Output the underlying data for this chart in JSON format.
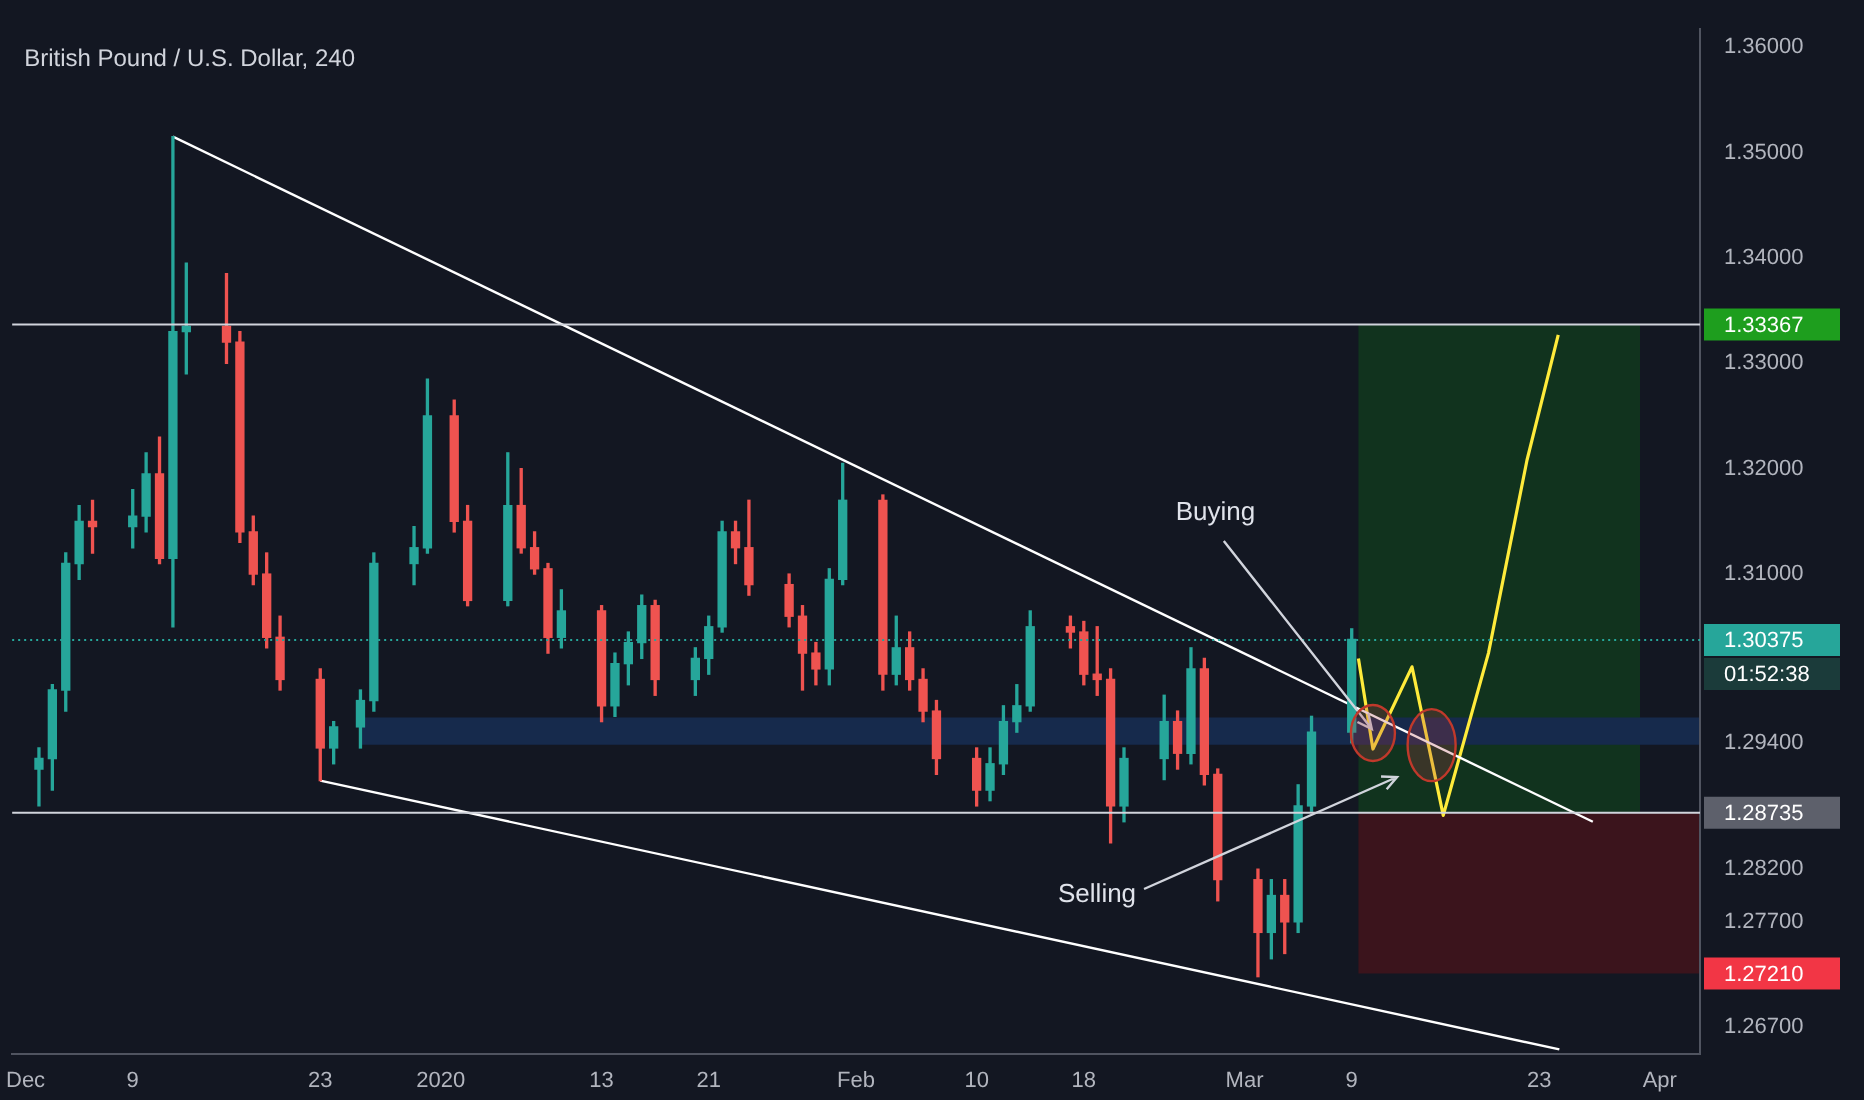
{
  "chart_data": {
    "type": "candlestick",
    "title": "British Pound / U.S. Dollar, 240",
    "x": [
      "2019-12-02",
      "2019-12-03",
      "2019-12-04",
      "2019-12-05",
      "2019-12-06",
      "2019-12-09",
      "2019-12-10",
      "2019-12-11",
      "2019-12-12",
      "2019-12-13",
      "2019-12-16",
      "2019-12-17",
      "2019-12-18",
      "2019-12-19",
      "2019-12-20",
      "2019-12-23",
      "2019-12-24",
      "2019-12-26",
      "2019-12-27",
      "2019-12-30",
      "2019-12-31",
      "2020-01-02",
      "2020-01-03",
      "2020-01-06",
      "2020-01-07",
      "2020-01-08",
      "2020-01-09",
      "2020-01-10",
      "2020-01-13",
      "2020-01-14",
      "2020-01-15",
      "2020-01-16",
      "2020-01-17",
      "2020-01-20",
      "2020-01-21",
      "2020-01-22",
      "2020-01-23",
      "2020-01-24",
      "2020-01-27",
      "2020-01-28",
      "2020-01-29",
      "2020-01-30",
      "2020-01-31",
      "2020-02-03",
      "2020-02-04",
      "2020-02-05",
      "2020-02-06",
      "2020-02-07",
      "2020-02-10",
      "2020-02-11",
      "2020-02-12",
      "2020-02-13",
      "2020-02-14",
      "2020-02-17",
      "2020-02-18",
      "2020-02-19",
      "2020-02-20",
      "2020-02-21",
      "2020-02-24",
      "2020-02-25",
      "2020-02-26",
      "2020-02-27",
      "2020-02-28",
      "2020-03-02",
      "2020-03-03",
      "2020-03-04",
      "2020-03-05",
      "2020-03-06",
      "2020-03-09"
    ],
    "ohlc": [
      [
        1.2915,
        1.2935,
        1.288,
        1.2925
      ],
      [
        1.2925,
        1.2995,
        1.2895,
        1.299
      ],
      [
        1.299,
        1.312,
        1.297,
        1.311
      ],
      [
        1.311,
        1.3165,
        1.3095,
        1.315
      ],
      [
        1.315,
        1.317,
        1.312,
        1.3145
      ],
      [
        1.3145,
        1.318,
        1.3125,
        1.3155
      ],
      [
        1.3155,
        1.3215,
        1.314,
        1.3195
      ],
      [
        1.3195,
        1.323,
        1.311,
        1.3115
      ],
      [
        1.3115,
        1.3515,
        1.305,
        1.333
      ],
      [
        1.333,
        1.3395,
        1.329,
        1.3335
      ],
      [
        1.3335,
        1.3385,
        1.33,
        1.332
      ],
      [
        1.332,
        1.333,
        1.313,
        1.314
      ],
      [
        1.314,
        1.3155,
        1.309,
        1.31
      ],
      [
        1.31,
        1.312,
        1.303,
        1.304
      ],
      [
        1.304,
        1.306,
        1.299,
        1.3
      ],
      [
        1.3,
        1.301,
        1.2904,
        1.2935
      ],
      [
        1.2935,
        1.296,
        1.292,
        1.2955
      ],
      [
        1.2955,
        1.299,
        1.2935,
        1.298
      ],
      [
        1.298,
        1.312,
        1.297,
        1.311
      ],
      [
        1.311,
        1.3145,
        1.309,
        1.3125
      ],
      [
        1.3125,
        1.3285,
        1.312,
        1.325
      ],
      [
        1.325,
        1.3265,
        1.314,
        1.315
      ],
      [
        1.315,
        1.3165,
        1.307,
        1.3075
      ],
      [
        1.3075,
        1.3215,
        1.307,
        1.3165
      ],
      [
        1.3165,
        1.32,
        1.312,
        1.3125
      ],
      [
        1.3125,
        1.314,
        1.31,
        1.3105
      ],
      [
        1.3105,
        1.311,
        1.3025,
        1.304
      ],
      [
        1.304,
        1.3085,
        1.303,
        1.3065
      ],
      [
        1.3065,
        1.307,
        1.296,
        1.2975
      ],
      [
        1.2975,
        1.3025,
        1.2965,
        1.3015
      ],
      [
        1.3015,
        1.3045,
        1.2995,
        1.3035
      ],
      [
        1.3035,
        1.308,
        1.302,
        1.307
      ],
      [
        1.307,
        1.3075,
        1.2985,
        1.3
      ],
      [
        1.3,
        1.303,
        1.2985,
        1.302
      ],
      [
        1.302,
        1.306,
        1.3005,
        1.305
      ],
      [
        1.305,
        1.315,
        1.3045,
        1.314
      ],
      [
        1.314,
        1.315,
        1.311,
        1.3125
      ],
      [
        1.3125,
        1.317,
        1.308,
        1.309
      ],
      [
        1.309,
        1.31,
        1.305,
        1.306
      ],
      [
        1.306,
        1.307,
        1.299,
        1.3025
      ],
      [
        1.3025,
        1.3035,
        1.2995,
        1.301
      ],
      [
        1.301,
        1.3105,
        1.2995,
        1.3095
      ],
      [
        1.3095,
        1.3205,
        1.309,
        1.317
      ],
      [
        1.317,
        1.3175,
        1.299,
        1.3005
      ],
      [
        1.3005,
        1.306,
        1.2995,
        1.303
      ],
      [
        1.303,
        1.3045,
        1.299,
        1.3
      ],
      [
        1.3,
        1.301,
        1.296,
        1.297
      ],
      [
        1.297,
        1.298,
        1.291,
        1.2925
      ],
      [
        1.2925,
        1.2935,
        1.288,
        1.2895
      ],
      [
        1.2895,
        1.2935,
        1.2885,
        1.292
      ],
      [
        1.292,
        1.2975,
        1.291,
        1.296
      ],
      [
        1.296,
        1.2995,
        1.295,
        1.2975
      ],
      [
        1.2975,
        1.3065,
        1.297,
        1.305
      ],
      [
        1.305,
        1.306,
        1.303,
        1.3045
      ],
      [
        1.3045,
        1.3055,
        1.2995,
        1.3005
      ],
      [
        1.3005,
        1.305,
        1.2985,
        1.3
      ],
      [
        1.3,
        1.301,
        1.2845,
        1.288
      ],
      [
        1.288,
        1.2935,
        1.2865,
        1.2925
      ],
      [
        1.2925,
        1.2985,
        1.2905,
        1.296
      ],
      [
        1.296,
        1.297,
        1.2915,
        1.293
      ],
      [
        1.293,
        1.303,
        1.292,
        1.301
      ],
      [
        1.301,
        1.302,
        1.29,
        1.291
      ],
      [
        1.291,
        1.2915,
        1.279,
        1.281
      ],
      [
        1.281,
        1.282,
        1.2718,
        1.276
      ],
      [
        1.276,
        1.281,
        1.2735,
        1.2795
      ],
      [
        1.2795,
        1.281,
        1.274,
        1.277
      ],
      [
        1.277,
        1.29,
        1.276,
        1.288
      ],
      [
        1.288,
        1.2965,
        1.2875,
        1.295
      ],
      [
        1.295,
        1.3048,
        1.294,
        1.3038
      ]
    ],
    "series": [
      {
        "type": "line",
        "color": "#ffffff",
        "x": [
          "2019-12-12",
          "2020-03-27"
        ],
        "values": [
          1.3515,
          1.2865
        ]
      },
      {
        "type": "line",
        "color": "#ffffff",
        "x": [
          "2019-12-23",
          "2020-03-24T12:00"
        ],
        "values": [
          1.2904,
          1.2649
        ]
      },
      {
        "type": "line",
        "color": "#ffeb3b",
        "x": [
          "2020-03-09T12:00",
          "2020-03-10T14:00",
          "2020-03-13T12:00",
          "2020-03-15T20:00",
          "2020-03-19T05:00",
          "2020-03-22T02:00",
          "2020-03-24T10:00"
        ],
        "values": [
          1.302,
          1.2934,
          1.3012,
          1.2871,
          1.3025,
          1.3208,
          1.3327
        ]
      }
    ],
    "xlim": [
      "2019-11-30",
      "2020-04-04"
    ],
    "xticks": [
      {
        "value": "2019-12-01",
        "label": "Dec"
      },
      {
        "value": "2019-12-09",
        "label": "9"
      },
      {
        "value": "2019-12-23",
        "label": "23"
      },
      {
        "value": "2020-01-01",
        "label": "2020"
      },
      {
        "value": "2020-01-13",
        "label": "13"
      },
      {
        "value": "2020-01-21",
        "label": "21"
      },
      {
        "value": "2020-02-01",
        "label": "Feb"
      },
      {
        "value": "2020-02-10",
        "label": "10"
      },
      {
        "value": "2020-02-18",
        "label": "18"
      },
      {
        "value": "2020-03-01",
        "label": "Mar"
      },
      {
        "value": "2020-03-09",
        "label": "9"
      },
      {
        "value": "2020-03-23",
        "label": "23"
      },
      {
        "value": "2020-04-01",
        "label": "Apr"
      }
    ],
    "ylim": [
      1.2645,
      1.3617
    ],
    "yticks": [
      {
        "value": 1.267,
        "label": "1.26700"
      },
      {
        "value": 1.277,
        "label": "1.27700"
      },
      {
        "value": 1.282,
        "label": "1.28200"
      },
      {
        "value": 1.294,
        "label": "1.29400"
      },
      {
        "value": 1.31,
        "label": "1.31000"
      },
      {
        "value": 1.32,
        "label": "1.32000"
      },
      {
        "value": 1.33,
        "label": "1.33000"
      },
      {
        "value": 1.34,
        "label": "1.34000"
      },
      {
        "value": 1.35,
        "label": "1.35000"
      },
      {
        "value": 1.36,
        "label": "1.36000"
      }
    ],
    "ref_lines": [
      {
        "axis": "y",
        "value": 1.33367,
        "label": "1.33367",
        "color": "#d1d4dc"
      },
      {
        "axis": "y",
        "value": 1.28735,
        "label": "1.28735",
        "color": "#d1d4dc"
      },
      {
        "axis": "y",
        "value": 1.30375,
        "label": "1.30375",
        "color": "#26a69a",
        "line_style": "dotted"
      }
    ],
    "bands": [
      {
        "axis": "y",
        "from": 1.28735,
        "to": 1.33367,
        "color": "#11331e"
      },
      {
        "axis": "y",
        "from": 1.2721,
        "to": 1.28735,
        "color": "#3b141c",
        "label": "1.27210"
      },
      {
        "axis": "y",
        "from": 1.2938,
        "to": 1.2964,
        "color": "#162a4c"
      }
    ],
    "annotations": [
      {
        "text": "Buying",
        "x": "2020-03-10T12:00",
        "y": 1.2953
      },
      "Selling",
      "01:52:38"
    ],
    "grid": false
  }
}
